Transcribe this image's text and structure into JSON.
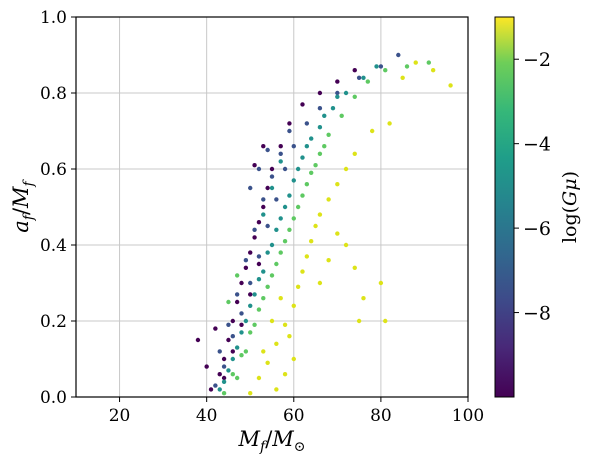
{
  "chart_data": {
    "type": "scatter",
    "xlabel": "M_f/M_⊙",
    "ylabel": "a_f/M_f",
    "xlim": [
      10,
      100
    ],
    "ylim": [
      0.0,
      1.0
    ],
    "xticks": [
      "20",
      "40",
      "60",
      "80",
      "100"
    ],
    "yticks": [
      "0.0",
      "0.2",
      "0.4",
      "0.6",
      "0.8",
      "1.0"
    ],
    "grid": true,
    "colorbar": {
      "label": "log(Gμ)",
      "colormap": "viridis",
      "range": [
        -10,
        -1
      ],
      "ticks": [
        "−2",
        "−4",
        "−6",
        "−8"
      ]
    },
    "series": [
      {
        "color_value": -9,
        "color": "#440154",
        "points": [
          [
            41,
            0.02
          ],
          [
            43,
            0.06
          ],
          [
            44,
            0.1
          ],
          [
            45,
            0.15
          ],
          [
            46,
            0.2
          ],
          [
            47,
            0.25
          ],
          [
            48,
            0.3
          ],
          [
            49,
            0.34
          ],
          [
            50,
            0.38
          ],
          [
            51,
            0.42
          ],
          [
            52,
            0.46
          ],
          [
            53,
            0.5
          ],
          [
            54,
            0.55
          ],
          [
            55,
            0.6
          ],
          [
            57,
            0.66
          ],
          [
            59,
            0.72
          ],
          [
            62,
            0.77
          ],
          [
            66,
            0.8
          ],
          [
            70,
            0.83
          ],
          [
            74,
            0.86
          ],
          [
            44,
            0.05
          ],
          [
            46,
            0.12
          ],
          [
            48,
            0.19
          ],
          [
            50,
            0.27
          ],
          [
            52,
            0.35
          ],
          [
            38,
            0.15
          ],
          [
            40,
            0.08
          ],
          [
            42,
            0.18
          ],
          [
            51,
            0.61
          ],
          [
            53,
            0.66
          ]
        ]
      },
      {
        "color_value": -8,
        "color": "#3b528b",
        "points": [
          [
            42,
            0.03
          ],
          [
            44,
            0.08
          ],
          [
            46,
            0.16
          ],
          [
            48,
            0.22
          ],
          [
            50,
            0.3
          ],
          [
            52,
            0.37
          ],
          [
            54,
            0.45
          ],
          [
            56,
            0.52
          ],
          [
            58,
            0.6
          ],
          [
            60,
            0.66
          ],
          [
            63,
            0.72
          ],
          [
            66,
            0.76
          ],
          [
            70,
            0.8
          ],
          [
            75,
            0.84
          ],
          [
            80,
            0.87
          ],
          [
            84,
            0.9
          ],
          [
            47,
            0.27
          ],
          [
            49,
            0.36
          ],
          [
            51,
            0.44
          ],
          [
            53,
            0.52
          ],
          [
            55,
            0.58
          ],
          [
            57,
            0.64
          ],
          [
            59,
            0.7
          ],
          [
            45,
            0.19
          ],
          [
            43,
            0.12
          ],
          [
            50,
            0.55
          ],
          [
            52,
            0.6
          ],
          [
            54,
            0.65
          ]
        ]
      },
      {
        "color_value": -6,
        "color": "#21918c",
        "points": [
          [
            43,
            0.02
          ],
          [
            45,
            0.07
          ],
          [
            47,
            0.13
          ],
          [
            49,
            0.2
          ],
          [
            51,
            0.27
          ],
          [
            53,
            0.33
          ],
          [
            55,
            0.4
          ],
          [
            57,
            0.47
          ],
          [
            59,
            0.53
          ],
          [
            61,
            0.6
          ],
          [
            63,
            0.66
          ],
          [
            66,
            0.71
          ],
          [
            69,
            0.76
          ],
          [
            72,
            0.8
          ],
          [
            76,
            0.84
          ],
          [
            79,
            0.87
          ],
          [
            48,
            0.17
          ],
          [
            50,
            0.24
          ],
          [
            52,
            0.31
          ],
          [
            54,
            0.38
          ],
          [
            56,
            0.44
          ],
          [
            58,
            0.5
          ],
          [
            60,
            0.57
          ],
          [
            62,
            0.63
          ],
          [
            64,
            0.68
          ],
          [
            67,
            0.74
          ],
          [
            70,
            0.79
          ],
          [
            46,
            0.1
          ],
          [
            44,
            0.04
          ],
          [
            55,
            0.55
          ],
          [
            57,
            0.62
          ],
          [
            53,
            0.48
          ]
        ]
      },
      {
        "color_value": -4,
        "color": "#5ec962",
        "points": [
          [
            44,
            0.01
          ],
          [
            46,
            0.06
          ],
          [
            48,
            0.11
          ],
          [
            50,
            0.17
          ],
          [
            52,
            0.23
          ],
          [
            54,
            0.29
          ],
          [
            56,
            0.35
          ],
          [
            58,
            0.41
          ],
          [
            60,
            0.47
          ],
          [
            62,
            0.53
          ],
          [
            64,
            0.59
          ],
          [
            66,
            0.64
          ],
          [
            68,
            0.69
          ],
          [
            71,
            0.74
          ],
          [
            74,
            0.79
          ],
          [
            77,
            0.83
          ],
          [
            81,
            0.86
          ],
          [
            47,
            0.05
          ],
          [
            49,
            0.12
          ],
          [
            51,
            0.19
          ],
          [
            53,
            0.26
          ],
          [
            55,
            0.32
          ],
          [
            57,
            0.38
          ],
          [
            59,
            0.44
          ],
          [
            61,
            0.5
          ],
          [
            63,
            0.56
          ],
          [
            65,
            0.61
          ],
          [
            67,
            0.66
          ],
          [
            45,
            0.25
          ],
          [
            47,
            0.32
          ],
          [
            91,
            0.88
          ],
          [
            86,
            0.87
          ]
        ]
      },
      {
        "color_value": -2,
        "color": "#dde318",
        "points": [
          [
            50,
            0.01
          ],
          [
            52,
            0.05
          ],
          [
            54,
            0.09
          ],
          [
            56,
            0.14
          ],
          [
            58,
            0.19
          ],
          [
            60,
            0.24
          ],
          [
            61,
            0.29
          ],
          [
            62,
            0.33
          ],
          [
            63,
            0.37
          ],
          [
            64,
            0.41
          ],
          [
            65,
            0.45
          ],
          [
            66,
            0.48
          ],
          [
            68,
            0.52
          ],
          [
            70,
            0.56
          ],
          [
            72,
            0.6
          ],
          [
            74,
            0.64
          ],
          [
            78,
            0.7
          ],
          [
            82,
            0.72
          ],
          [
            85,
            0.84
          ],
          [
            88,
            0.88
          ],
          [
            92,
            0.86
          ],
          [
            96,
            0.82
          ],
          [
            70,
            0.43
          ],
          [
            72,
            0.4
          ],
          [
            74,
            0.34
          ],
          [
            76,
            0.26
          ],
          [
            75,
            0.2
          ],
          [
            80,
            0.3
          ],
          [
            81,
            0.2
          ],
          [
            55,
            0.2
          ],
          [
            57,
            0.26
          ],
          [
            59,
            0.16
          ],
          [
            60,
            0.1
          ],
          [
            58,
            0.06
          ],
          [
            56,
            0.02
          ],
          [
            66,
            0.3
          ],
          [
            68,
            0.36
          ],
          [
            53,
            0.12
          ]
        ]
      }
    ]
  }
}
